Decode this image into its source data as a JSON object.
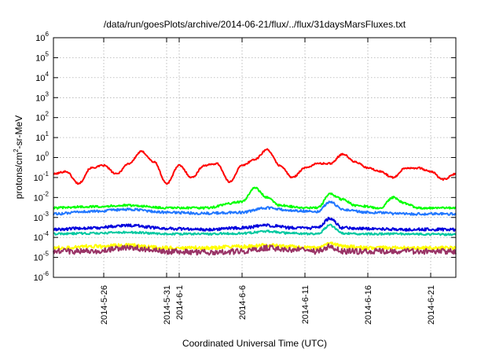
{
  "chart_data": {
    "type": "line",
    "title": "/data/run/goesPlots/archive/2014-06-21/flux/../flux/31daysMarsFluxes.txt",
    "xlabel": "Coordinated Universal Time (UTC)",
    "ylabel": "protons/cm2-sr-MeV",
    "ylabel_parts": {
      "base": "protons/cm",
      "sup": "2",
      "rest": "-sr-MeV"
    },
    "y_scale": "log",
    "ylim": [
      1e-06,
      1000000.0
    ],
    "y_ticks": [
      {
        "base": "10",
        "exp": "-6"
      },
      {
        "base": "10",
        "exp": "-5"
      },
      {
        "base": "10",
        "exp": "-4"
      },
      {
        "base": "10",
        "exp": "-3"
      },
      {
        "base": "10",
        "exp": "-2"
      },
      {
        "base": "10",
        "exp": "-1"
      },
      {
        "base": "10",
        "exp": "0"
      },
      {
        "base": "10",
        "exp": "1"
      },
      {
        "base": "10",
        "exp": "2"
      },
      {
        "base": "10",
        "exp": "3"
      },
      {
        "base": "10",
        "exp": "4"
      },
      {
        "base": "10",
        "exp": "5"
      },
      {
        "base": "10",
        "exp": "6"
      }
    ],
    "xlim": [
      "2014-05-22",
      "2014-06-23"
    ],
    "x_ticks": [
      "2014-5-26",
      "2014-5-31",
      "2014-6-1",
      "2014-6-6",
      "2014-6-11",
      "2014-6-16",
      "2014-6-21"
    ],
    "grid": true,
    "series": [
      {
        "color": "#ff0000",
        "x": [
          "2014-05-22",
          "2014-05-23",
          "2014-05-24",
          "2014-05-25",
          "2014-05-26",
          "2014-05-27",
          "2014-05-28",
          "2014-05-29",
          "2014-05-30",
          "2014-05-31",
          "2014-06-01",
          "2014-06-02",
          "2014-06-03",
          "2014-06-04",
          "2014-06-05",
          "2014-06-06",
          "2014-06-07",
          "2014-06-08",
          "2014-06-09",
          "2014-06-10",
          "2014-06-11",
          "2014-06-12",
          "2014-06-13",
          "2014-06-14",
          "2014-06-15",
          "2014-06-16",
          "2014-06-17",
          "2014-06-18",
          "2014-06-19",
          "2014-06-20",
          "2014-06-21",
          "2014-06-22",
          "2014-06-23"
        ],
        "values": [
          0.15,
          0.2,
          0.05,
          0.3,
          0.4,
          0.15,
          0.5,
          2.0,
          0.6,
          0.05,
          0.4,
          0.1,
          0.4,
          0.5,
          0.06,
          0.4,
          0.8,
          2.5,
          0.4,
          0.1,
          0.3,
          0.5,
          0.5,
          1.5,
          0.6,
          0.3,
          0.2,
          0.1,
          0.3,
          0.3,
          0.2,
          0.08,
          0.15
        ]
      },
      {
        "color": "#00ff00",
        "x": [
          "2014-05-22",
          "2014-05-25",
          "2014-05-28",
          "2014-05-31",
          "2014-06-03",
          "2014-06-06",
          "2014-06-07",
          "2014-06-08",
          "2014-06-09",
          "2014-06-11",
          "2014-06-12",
          "2014-06-13",
          "2014-06-14",
          "2014-06-15",
          "2014-06-17",
          "2014-06-18",
          "2014-06-19",
          "2014-06-20",
          "2014-06-23"
        ],
        "values": [
          0.003,
          0.0035,
          0.004,
          0.003,
          0.003,
          0.006,
          0.03,
          0.01,
          0.004,
          0.003,
          0.003,
          0.015,
          0.008,
          0.004,
          0.003,
          0.01,
          0.005,
          0.003,
          0.003
        ]
      },
      {
        "color": "#2277ff",
        "x": [
          "2014-05-22",
          "2014-05-25",
          "2014-05-28",
          "2014-05-31",
          "2014-06-03",
          "2014-06-06",
          "2014-06-08",
          "2014-06-10",
          "2014-06-12",
          "2014-06-13",
          "2014-06-14",
          "2014-06-16",
          "2014-06-19",
          "2014-06-23"
        ],
        "values": [
          0.0015,
          0.002,
          0.0025,
          0.0018,
          0.0016,
          0.0018,
          0.003,
          0.0022,
          0.002,
          0.006,
          0.0025,
          0.0018,
          0.0015,
          0.0015
        ]
      },
      {
        "color": "#0000dd",
        "x": [
          "2014-05-22",
          "2014-05-25",
          "2014-05-28",
          "2014-05-31",
          "2014-06-03",
          "2014-06-06",
          "2014-06-08",
          "2014-06-10",
          "2014-06-12",
          "2014-06-13",
          "2014-06-14",
          "2014-06-16",
          "2014-06-19",
          "2014-06-23"
        ],
        "values": [
          0.00025,
          0.0003,
          0.0004,
          0.00028,
          0.00025,
          0.0003,
          0.0004,
          0.0003,
          0.0003,
          0.0009,
          0.0003,
          0.00028,
          0.00025,
          0.00025
        ]
      },
      {
        "color": "#00c8a0",
        "x": [
          "2014-05-22",
          "2014-05-25",
          "2014-05-28",
          "2014-05-31",
          "2014-06-03",
          "2014-06-06",
          "2014-06-08",
          "2014-06-10",
          "2014-06-12",
          "2014-06-13",
          "2014-06-14",
          "2014-06-16",
          "2014-06-19",
          "2014-06-23"
        ],
        "values": [
          0.00015,
          0.00016,
          0.00018,
          0.00015,
          0.00015,
          0.00016,
          0.0002,
          0.00016,
          0.00015,
          0.0004,
          0.00016,
          0.00015,
          0.00015,
          0.00014
        ]
      },
      {
        "color": "#ffff00",
        "x": [
          "2014-05-22",
          "2014-05-25",
          "2014-05-28",
          "2014-05-31",
          "2014-06-03",
          "2014-06-06",
          "2014-06-08",
          "2014-06-10",
          "2014-06-12",
          "2014-06-13",
          "2014-06-14",
          "2014-06-16",
          "2014-06-19",
          "2014-06-23"
        ],
        "values": [
          3e-05,
          3.5e-05,
          4e-05,
          3e-05,
          3e-05,
          3.5e-05,
          4e-05,
          3.5e-05,
          3e-05,
          5e-05,
          3.5e-05,
          3e-05,
          3e-05,
          3e-05
        ]
      },
      {
        "color": "#993366",
        "x": [
          "2014-05-22",
          "2014-05-25",
          "2014-05-28",
          "2014-05-31",
          "2014-06-03",
          "2014-06-06",
          "2014-06-08",
          "2014-06-10",
          "2014-06-12",
          "2014-06-13",
          "2014-06-14",
          "2014-06-16",
          "2014-06-19",
          "2014-06-23"
        ],
        "values": [
          2e-05,
          2e-05,
          3e-05,
          2e-05,
          1.8e-05,
          2e-05,
          3e-05,
          2.5e-05,
          2e-05,
          3.5e-05,
          2e-05,
          2e-05,
          2e-05,
          2e-05
        ]
      }
    ]
  }
}
